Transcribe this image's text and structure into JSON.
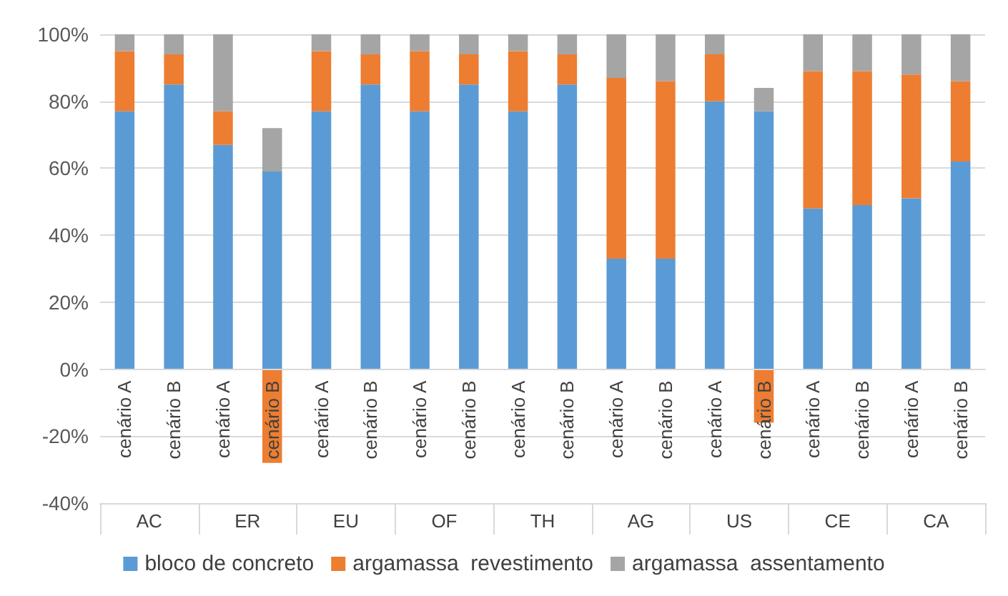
{
  "chart_data": {
    "type": "bar",
    "stacked": true,
    "categories": [
      "cenário A",
      "cenário B",
      "cenário A",
      "cenário B",
      "cenário A",
      "cenário B",
      "cenário A",
      "cenário B",
      "cenário A",
      "cenário B",
      "cenário A",
      "cenário B",
      "cenário A",
      "cenário B",
      "cenário A",
      "cenário B",
      "cenário A",
      "cenário B"
    ],
    "annotations": [
      "AC",
      "ER",
      "EU",
      "OF",
      "TH",
      "AG",
      "US",
      "CE",
      "CA"
    ],
    "series": [
      {
        "name": "bloco de concreto",
        "color": "#5b9bd5",
        "values": [
          77,
          85,
          67,
          59,
          77,
          85,
          77,
          85,
          77,
          85,
          33,
          33,
          80,
          77,
          48,
          49,
          51,
          62
        ]
      },
      {
        "name": "argamassa  revestimento",
        "color": "#ed7d31",
        "values": [
          18,
          9,
          10,
          -28,
          18,
          9,
          18,
          9,
          18,
          9,
          54,
          53,
          14,
          -16,
          41,
          40,
          37,
          24
        ]
      },
      {
        "name": "argamassa  assentamento",
        "color": "#a5a5a5",
        "values": [
          5,
          6,
          23,
          13,
          5,
          6,
          5,
          6,
          5,
          6,
          13,
          14,
          6,
          7,
          11,
          11,
          12,
          14
        ]
      }
    ],
    "ylim": [
      -40,
      100
    ],
    "yticks": [
      {
        "value": -40,
        "label": "-40%"
      },
      {
        "value": -20,
        "label": "-20%"
      },
      {
        "value": 0,
        "label": "0%"
      },
      {
        "value": 20,
        "label": "20%"
      },
      {
        "value": 40,
        "label": "40%"
      },
      {
        "value": 60,
        "label": "60%"
      },
      {
        "value": 80,
        "label": "80%"
      },
      {
        "value": 100,
        "label": "100%"
      }
    ],
    "grid": "y",
    "legend": "bottom"
  }
}
